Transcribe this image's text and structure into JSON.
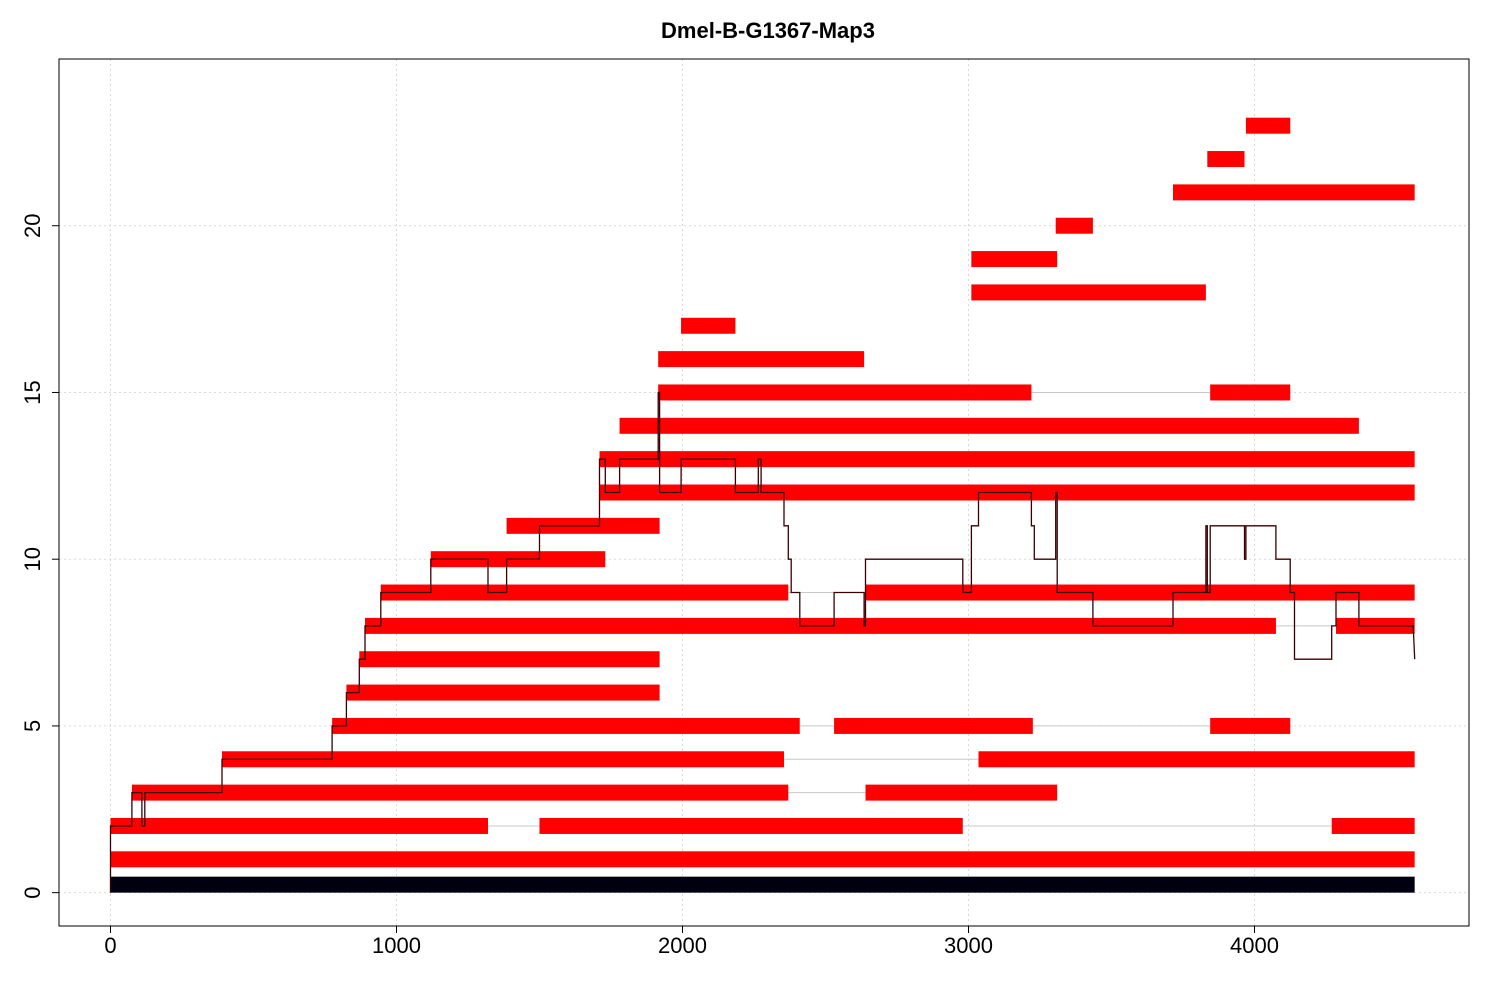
{
  "chart_data": {
    "type": "bar",
    "title": "Dmel-B-G1367-Map3",
    "xlabel": "",
    "ylabel": "",
    "xlim": [
      -180,
      4750
    ],
    "ylim": [
      -1,
      25
    ],
    "x_ticks": [
      0,
      1000,
      2000,
      3000,
      4000
    ],
    "x_tick_labels": [
      "0",
      "1000",
      "2000",
      "3000",
      "4000"
    ],
    "y_ticks": [
      0,
      5,
      10,
      15,
      20
    ],
    "y_tick_labels": [
      "0",
      "5",
      "10",
      "15",
      "20"
    ],
    "grid": true,
    "colors": {
      "reference": "#000010",
      "segment": "#ff0000",
      "gap": "#c8c8c8",
      "coverage": "#3a0000"
    },
    "reference": {
      "row": 0,
      "start": 0,
      "end": 4560
    },
    "segments": [
      {
        "row": 1,
        "start": 0,
        "end": 4560
      },
      {
        "row": 2,
        "start": 0,
        "end": 1320
      },
      {
        "row": 2,
        "start": 1500,
        "end": 2980
      },
      {
        "row": 2,
        "start": 4270,
        "end": 4560
      },
      {
        "row": 3,
        "start": 75,
        "end": 2370
      },
      {
        "row": 3,
        "start": 2640,
        "end": 3310
      },
      {
        "row": 4,
        "start": 390,
        "end": 2355
      },
      {
        "row": 4,
        "start": 3035,
        "end": 4560
      },
      {
        "row": 5,
        "start": 775,
        "end": 2410
      },
      {
        "row": 5,
        "start": 2530,
        "end": 3225
      },
      {
        "row": 5,
        "start": 3845,
        "end": 4125
      },
      {
        "row": 6,
        "start": 825,
        "end": 1920
      },
      {
        "row": 7,
        "start": 870,
        "end": 1920
      },
      {
        "row": 8,
        "start": 890,
        "end": 4075
      },
      {
        "row": 8,
        "start": 4285,
        "end": 4560
      },
      {
        "row": 9,
        "start": 945,
        "end": 2370
      },
      {
        "row": 9,
        "start": 2640,
        "end": 4560
      },
      {
        "row": 10,
        "start": 1120,
        "end": 1730
      },
      {
        "row": 11,
        "start": 1385,
        "end": 1920
      },
      {
        "row": 12,
        "start": 1710,
        "end": 4560
      },
      {
        "row": 13,
        "start": 1710,
        "end": 4560
      },
      {
        "row": 14,
        "start": 1780,
        "end": 4365
      },
      {
        "row": 15,
        "start": 1915,
        "end": 3220
      },
      {
        "row": 15,
        "start": 3845,
        "end": 4125
      },
      {
        "row": 16,
        "start": 1915,
        "end": 2635
      },
      {
        "row": 17,
        "start": 1995,
        "end": 2185
      },
      {
        "row": 18,
        "start": 3010,
        "end": 3830
      },
      {
        "row": 19,
        "start": 3010,
        "end": 3310
      },
      {
        "row": 20,
        "start": 3305,
        "end": 3435
      },
      {
        "row": 21,
        "start": 3715,
        "end": 4560
      },
      {
        "row": 22,
        "start": 3835,
        "end": 3965
      },
      {
        "row": 23,
        "start": 3970,
        "end": 4125
      }
    ],
    "gap_links": [
      {
        "row": 2,
        "start": 1320,
        "end": 1500
      },
      {
        "row": 2,
        "start": 2980,
        "end": 4270
      },
      {
        "row": 3,
        "start": 2370,
        "end": 2640
      },
      {
        "row": 4,
        "start": 2355,
        "end": 3035
      },
      {
        "row": 5,
        "start": 2410,
        "end": 2530
      },
      {
        "row": 5,
        "start": 3225,
        "end": 3845
      },
      {
        "row": 8,
        "start": 4075,
        "end": 4285
      },
      {
        "row": 9,
        "start": 2370,
        "end": 2640
      },
      {
        "row": 15,
        "start": 3220,
        "end": 3845
      }
    ],
    "coverage": [
      [
        0,
        0
      ],
      [
        0,
        2
      ],
      [
        75,
        2
      ],
      [
        75,
        3
      ],
      [
        110,
        3
      ],
      [
        110,
        2
      ],
      [
        120,
        2
      ],
      [
        120,
        3
      ],
      [
        390,
        3
      ],
      [
        390,
        4
      ],
      [
        775,
        4
      ],
      [
        775,
        5
      ],
      [
        825,
        5
      ],
      [
        825,
        6
      ],
      [
        870,
        6
      ],
      [
        870,
        7
      ],
      [
        890,
        7
      ],
      [
        890,
        8
      ],
      [
        945,
        8
      ],
      [
        945,
        9
      ],
      [
        1120,
        9
      ],
      [
        1120,
        10
      ],
      [
        1320,
        10
      ],
      [
        1320,
        9
      ],
      [
        1385,
        9
      ],
      [
        1385,
        10
      ],
      [
        1500,
        10
      ],
      [
        1500,
        11
      ],
      [
        1710,
        11
      ],
      [
        1710,
        13
      ],
      [
        1730,
        13
      ],
      [
        1730,
        12
      ],
      [
        1780,
        12
      ],
      [
        1780,
        13
      ],
      [
        1915,
        13
      ],
      [
        1915,
        15
      ],
      [
        1920,
        15
      ],
      [
        1920,
        12
      ],
      [
        1995,
        12
      ],
      [
        1995,
        13
      ],
      [
        2185,
        13
      ],
      [
        2185,
        12
      ],
      [
        2265,
        12
      ],
      [
        2265,
        13
      ],
      [
        2275,
        13
      ],
      [
        2275,
        12
      ],
      [
        2355,
        12
      ],
      [
        2355,
        11
      ],
      [
        2370,
        11
      ],
      [
        2370,
        10
      ],
      [
        2380,
        10
      ],
      [
        2380,
        9
      ],
      [
        2410,
        9
      ],
      [
        2410,
        8
      ],
      [
        2530,
        8
      ],
      [
        2530,
        9
      ],
      [
        2635,
        9
      ],
      [
        2635,
        8
      ],
      [
        2640,
        8
      ],
      [
        2640,
        10
      ],
      [
        2980,
        10
      ],
      [
        2980,
        9
      ],
      [
        3010,
        9
      ],
      [
        3010,
        11
      ],
      [
        3035,
        11
      ],
      [
        3035,
        12
      ],
      [
        3220,
        12
      ],
      [
        3220,
        11
      ],
      [
        3230,
        11
      ],
      [
        3230,
        10
      ],
      [
        3305,
        10
      ],
      [
        3305,
        12
      ],
      [
        3310,
        12
      ],
      [
        3310,
        9
      ],
      [
        3435,
        9
      ],
      [
        3435,
        8
      ],
      [
        3715,
        8
      ],
      [
        3715,
        9
      ],
      [
        3830,
        9
      ],
      [
        3830,
        11
      ],
      [
        3835,
        11
      ],
      [
        3835,
        9
      ],
      [
        3845,
        9
      ],
      [
        3845,
        11
      ],
      [
        3965,
        11
      ],
      [
        3965,
        10
      ],
      [
        3970,
        10
      ],
      [
        3970,
        11
      ],
      [
        4075,
        11
      ],
      [
        4075,
        10
      ],
      [
        4125,
        10
      ],
      [
        4125,
        9
      ],
      [
        4140,
        9
      ],
      [
        4140,
        7
      ],
      [
        4270,
        7
      ],
      [
        4270,
        8
      ],
      [
        4285,
        8
      ],
      [
        4285,
        9
      ],
      [
        4365,
        9
      ],
      [
        4365,
        8
      ],
      [
        4555,
        8
      ],
      [
        4560,
        7
      ]
    ]
  }
}
